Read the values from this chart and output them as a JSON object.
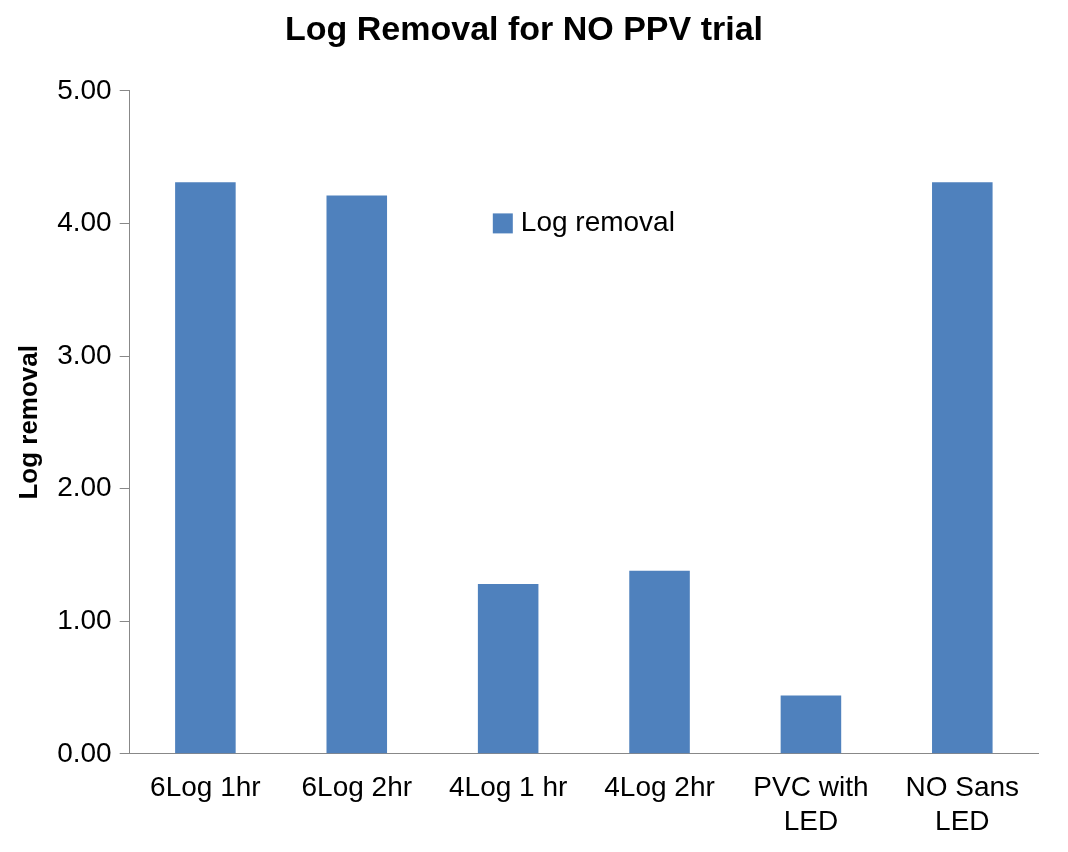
{
  "chart_data": {
    "type": "bar",
    "title": "Log Removal for NO PPV trial",
    "ylabel": "Log removal",
    "categories": [
      "6Log 1hr",
      "6Log 2hr",
      "4Log 1 hr",
      "4Log 2hr",
      "PVC with LED",
      "NO Sans LED"
    ],
    "series": [
      {
        "name": "Log removal",
        "color": "#4f81bd",
        "values": [
          4.31,
          4.21,
          1.28,
          1.38,
          0.44,
          4.31
        ]
      }
    ],
    "ylim": [
      0,
      5
    ],
    "yticks": [
      {
        "value": 0,
        "label": "0.00"
      },
      {
        "value": 1,
        "label": "1.00"
      },
      {
        "value": 2,
        "label": "2.00"
      },
      {
        "value": 3,
        "label": "3.00"
      },
      {
        "value": 4,
        "label": "4.00"
      },
      {
        "value": 5,
        "label": "5.00"
      }
    ],
    "grid": false,
    "legend": "top"
  }
}
